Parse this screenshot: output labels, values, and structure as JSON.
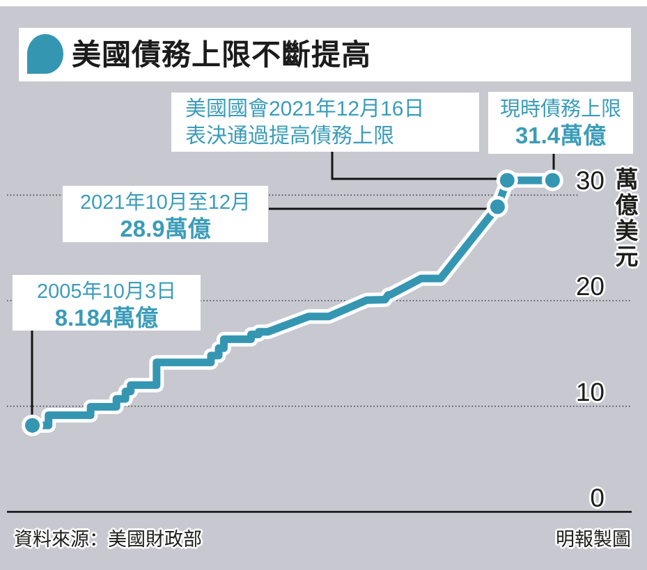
{
  "colors": {
    "background": "#c7c8d0",
    "box_bg": "#ffffff",
    "accent_line": "#3596b2",
    "accent_text": "#3b9cb8",
    "ink": "#1d1d1b"
  },
  "header": {
    "title": "美國債務上限不斷提高",
    "icon": "speech-bubble"
  },
  "chart_data": {
    "type": "line",
    "line_style": "step",
    "title": "美國債務上限不斷提高",
    "xlabel": "",
    "ylabel": "萬億美元",
    "unit_label": "萬億美元",
    "ylim": [
      0,
      33.5
    ],
    "grid": "dotted horizontal",
    "yticks": [
      {
        "label": "0",
        "value": 0
      },
      {
        "label": "10",
        "value": 10
      },
      {
        "label": "20",
        "value": 20
      },
      {
        "label": "30",
        "value": 30
      }
    ],
    "series": [
      {
        "name": "美國債務上限",
        "color": "#3596b2",
        "points": [
          [
            0.05,
            8.184
          ],
          [
            0.075,
            8.184
          ],
          [
            0.075,
            9.15
          ],
          [
            0.14,
            9.15
          ],
          [
            0.14,
            9.95
          ],
          [
            0.18,
            9.95
          ],
          [
            0.18,
            10.7
          ],
          [
            0.194,
            10.7
          ],
          [
            0.194,
            11.4
          ],
          [
            0.202,
            11.4
          ],
          [
            0.202,
            12.0
          ],
          [
            0.242,
            12.0
          ],
          [
            0.242,
            14.15
          ],
          [
            0.326,
            14.15
          ],
          [
            0.326,
            14.8
          ],
          [
            0.338,
            14.8
          ],
          [
            0.338,
            15.5
          ],
          [
            0.346,
            15.5
          ],
          [
            0.346,
            16.35
          ],
          [
            0.388,
            16.35
          ],
          [
            0.388,
            16.8
          ],
          [
            0.4,
            16.8
          ],
          [
            0.4,
            17.05
          ],
          [
            0.414,
            17.05
          ],
          [
            0.477,
            18.5
          ],
          [
            0.508,
            18.5
          ],
          [
            0.567,
            20.05
          ],
          [
            0.595,
            20.1
          ],
          [
            0.6,
            20.55
          ],
          [
            0.603,
            20.55
          ],
          [
            0.651,
            22.1
          ],
          [
            0.681,
            22.1
          ],
          [
            0.769,
            28.9
          ],
          [
            0.784,
            31.4
          ],
          [
            0.854,
            31.4
          ]
        ],
        "markers": [
          [
            0.05,
            8.184
          ],
          [
            0.769,
            28.9
          ],
          [
            0.784,
            31.4
          ],
          [
            0.854,
            31.4
          ]
        ]
      }
    ],
    "key_values": {
      "start_2005_10_03": 8.184,
      "q4_2021": 28.9,
      "current_ceiling": 31.4
    }
  },
  "annotations": {
    "congress": {
      "line1": "美國國會2021年12月16日",
      "line2": "表決通過提高債務上限"
    },
    "current": {
      "title": "現時債務上限",
      "value": "31.4萬億"
    },
    "q4_2021": {
      "title": "2021年10月至12月",
      "value": "28.9萬億"
    },
    "start_2005": {
      "title": "2005年10月3日",
      "value": "8.184萬億"
    }
  },
  "footer": {
    "source": "資料來源：美國財政部",
    "credit": "明報製圖"
  }
}
